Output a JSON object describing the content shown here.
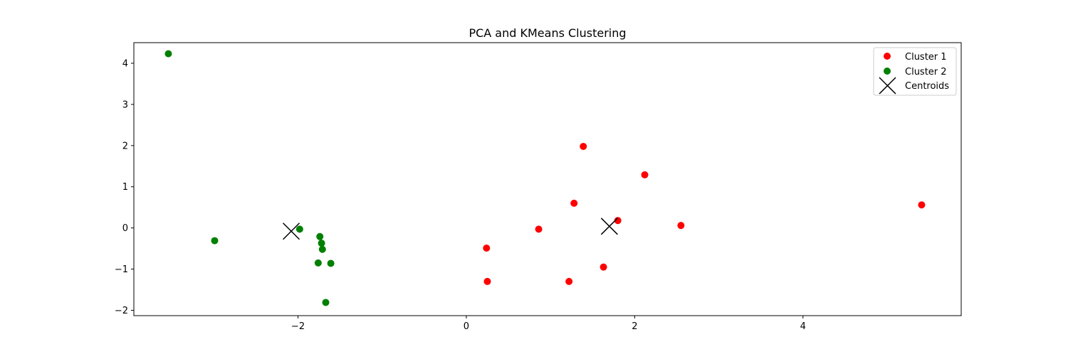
{
  "chart_data": {
    "type": "scatter",
    "title": "PCA and KMeans Clustering",
    "xlabel": "",
    "ylabel": "",
    "xlim": [
      -3.95,
      5.88
    ],
    "ylim": [
      -2.13,
      4.5
    ],
    "xticks": [
      -2,
      0,
      2,
      4
    ],
    "xtick_labels": [
      "−2",
      "0",
      "2",
      "4"
    ],
    "yticks": [
      -2,
      -1,
      0,
      1,
      2,
      3,
      4
    ],
    "ytick_labels": [
      "−2",
      "−1",
      "0",
      "1",
      "2",
      "3",
      "4"
    ],
    "grid": false,
    "legend_position": "top-right",
    "series": [
      {
        "name": "Cluster 1",
        "marker": "circle",
        "color": "#ff0000",
        "points": [
          [
            1.39,
            1.98
          ],
          [
            2.12,
            1.29
          ],
          [
            1.28,
            0.6
          ],
          [
            5.41,
            0.56
          ],
          [
            2.55,
            0.06
          ],
          [
            1.8,
            0.18
          ],
          [
            0.86,
            -0.03
          ],
          [
            0.24,
            -0.49
          ],
          [
            1.63,
            -0.95
          ],
          [
            0.25,
            -1.3
          ],
          [
            1.22,
            -1.3
          ]
        ]
      },
      {
        "name": "Cluster 2",
        "marker": "circle",
        "color": "#008000",
        "points": [
          [
            -3.54,
            4.23
          ],
          [
            -2.99,
            -0.31
          ],
          [
            -1.98,
            -0.03
          ],
          [
            -1.74,
            -0.21
          ],
          [
            -1.72,
            -0.37
          ],
          [
            -1.71,
            -0.52
          ],
          [
            -1.76,
            -0.85
          ],
          [
            -1.61,
            -0.86
          ],
          [
            -1.67,
            -1.81
          ]
        ]
      },
      {
        "name": "Centroids",
        "marker": "x",
        "color": "#000000",
        "points": [
          [
            -2.08,
            -0.08
          ],
          [
            1.7,
            0.04
          ]
        ]
      }
    ]
  }
}
